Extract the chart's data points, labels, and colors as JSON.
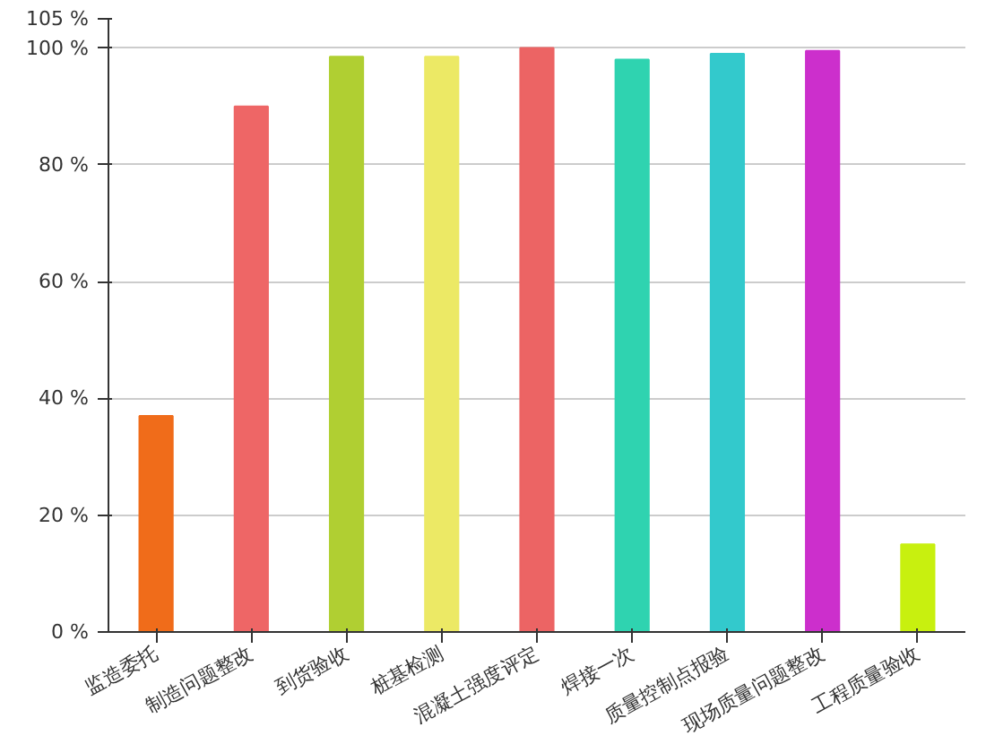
{
  "chart_data": {
    "type": "bar",
    "categories": [
      "监造委托",
      "制造问题整改",
      "到货验收",
      "桩基检测",
      "混凝土强度评定",
      "焊接一次",
      "质量控制点报验",
      "现场质量问题整改",
      "工程质量验收"
    ],
    "values": [
      37,
      90,
      98.5,
      98.5,
      100,
      98,
      99,
      99.5,
      15
    ],
    "colors": [
      "#f06c1a",
      "#ee6666",
      "#b0cf32",
      "#ece965",
      "#ec6464",
      "#2fd3b0",
      "#33c9cc",
      "#cc2fcc",
      "#c8f00f"
    ],
    "ylim": [
      0,
      105
    ],
    "yticks": [
      {
        "value": 0,
        "label": "0 %"
      },
      {
        "value": 20,
        "label": "20 %"
      },
      {
        "value": 40,
        "label": "40 %"
      },
      {
        "value": 60,
        "label": "60 %"
      },
      {
        "value": 80,
        "label": "80 %"
      },
      {
        "value": 100,
        "label": "100 %"
      },
      {
        "value": 105,
        "label": "105 %"
      }
    ],
    "grid": "y"
  }
}
